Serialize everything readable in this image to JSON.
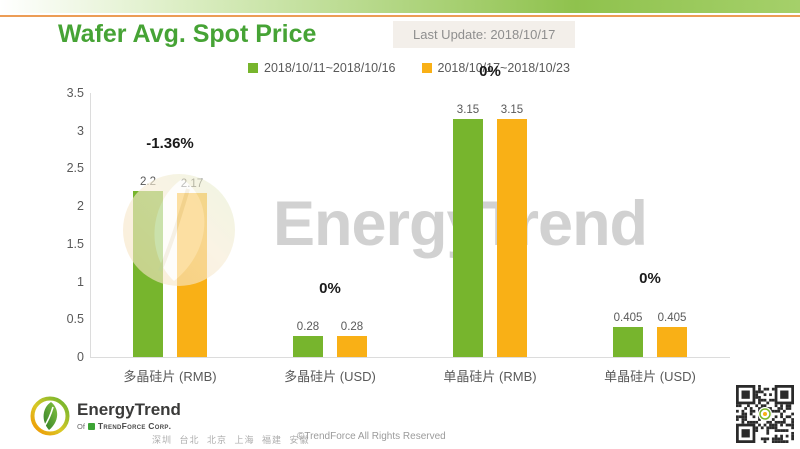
{
  "header": {
    "title": "Wafer Avg. Spot Price",
    "last_update": "Last Update: 2018/10/17"
  },
  "legend": [
    {
      "label": "2018/10/11~2018/10/16",
      "color": "#77B52D"
    },
    {
      "label": "2018/10/17~2018/10/23",
      "color": "#F9B016"
    }
  ],
  "chart_data": {
    "type": "bar",
    "title": "Wafer Avg. Spot Price",
    "categories": [
      "多晶硅片 (RMB)",
      "多晶硅片 (USD)",
      "单晶硅片 (RMB)",
      "单晶硅片 (USD)"
    ],
    "series": [
      {
        "name": "2018/10/11~2018/10/16",
        "color": "#77B52D",
        "values": [
          2.2,
          0.28,
          3.15,
          0.405
        ]
      },
      {
        "name": "2018/10/17~2018/10/23",
        "color": "#F9B016",
        "values": [
          2.17,
          0.28,
          3.15,
          0.405
        ]
      }
    ],
    "change_labels": [
      "-1.36%",
      "0%",
      "0%",
      "0%"
    ],
    "xlabel": "",
    "ylabel": "",
    "ylim": [
      0,
      3.5
    ],
    "yticks": [
      3.5,
      3,
      2.5,
      2,
      1.5,
      1,
      0.5,
      0
    ],
    "grid": false,
    "legend_position": "top"
  },
  "watermark": {
    "text": "EnergyTrend"
  },
  "footer": {
    "logo_text": "EnergyTrend",
    "logo_of": "Of",
    "logo_corp": "TrendForce Corp.",
    "locations": "深圳 台北 北京 上海 福建 安徽",
    "copyright": "©TrendForce All Rights Reserved"
  },
  "colors": {
    "title_green": "#46A335",
    "bar_green": "#77B52D",
    "bar_orange": "#F9B016",
    "top_strip_green": "#8FC24D",
    "top_orange_line": "#EC9D55",
    "watermark_gray": "#C6C6C6"
  }
}
